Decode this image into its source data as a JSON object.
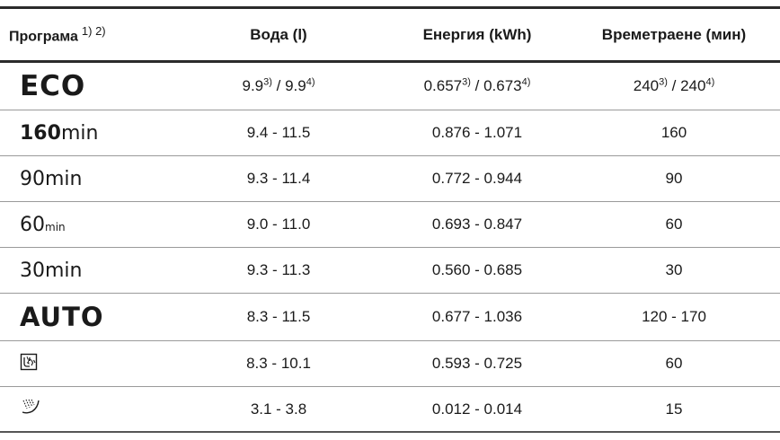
{
  "header": {
    "program": "Програма",
    "program_notes": "1) 2)",
    "water": "Вода (l)",
    "energy": "Енергия (kWh)",
    "duration": "Времетраене (мин)"
  },
  "rows": [
    {
      "program": "ECO",
      "water": {
        "a": "9.9",
        "a_note": "3)",
        "sep": " / ",
        "b": "9.9",
        "b_note": "4)"
      },
      "energy": {
        "a": "0.657",
        "a_note": "3)",
        "sep": " / ",
        "b": "0.673",
        "b_note": "4)"
      },
      "duration": {
        "a": "240",
        "a_note": "3)",
        "sep": " / ",
        "b": "240",
        "b_note": "4)"
      }
    },
    {
      "program_num": "160",
      "program_unit": "min",
      "water": "9.4 - 11.5",
      "energy": "0.876 - 1.071",
      "duration": "160"
    },
    {
      "program_num": "90",
      "program_unit": "min",
      "water": "9.3 - 11.4",
      "energy": "0.772 - 0.944",
      "duration": "90"
    },
    {
      "program_num": "60",
      "program_unit": "min",
      "water": "9.0 - 11.0",
      "energy": "0.693 - 0.847",
      "duration": "60"
    },
    {
      "program_num": "30",
      "program_unit": "min",
      "water": "9.3 - 11.3",
      "energy": "0.560 - 0.685",
      "duration": "30"
    },
    {
      "program": "AUTO",
      "water": "8.3 - 11.5",
      "energy": "0.677 - 1.036",
      "duration": "120 - 170"
    },
    {
      "program_icon": "glass-care-icon",
      "water": "8.3 - 10.1",
      "energy": "0.593 - 0.725",
      "duration": "60"
    },
    {
      "program_icon": "rinse-spray-icon",
      "water": "3.1 - 3.8",
      "energy": "0.012 - 0.014",
      "duration": "15"
    }
  ]
}
